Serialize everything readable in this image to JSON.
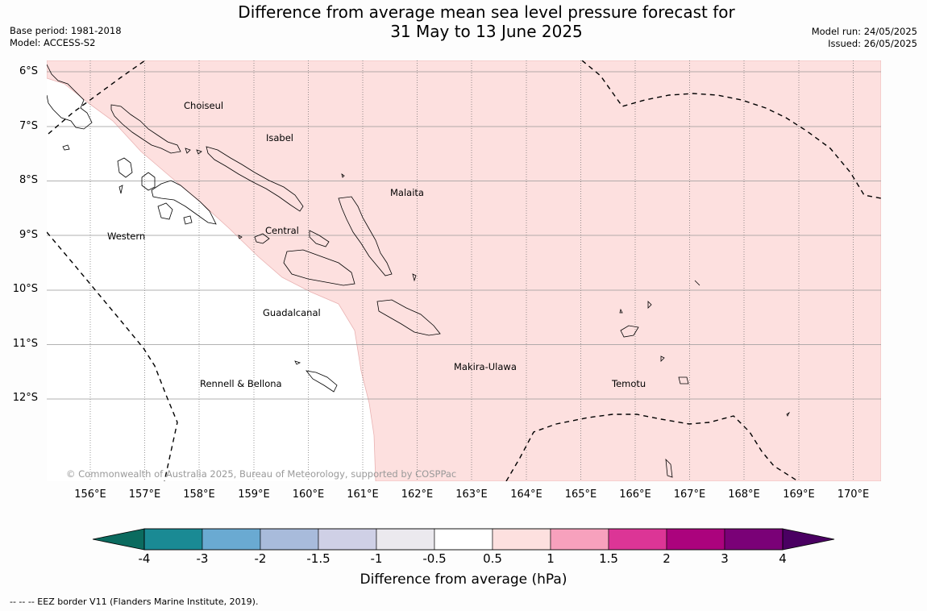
{
  "title_line1": "Difference from average mean sea level pressure forecast for",
  "title_line2": "31 May to 13 June 2025",
  "base_period": "Base period: 1981-2018",
  "model": "Model: ACCESS-S2",
  "model_run": "Model run: 24/05/2025",
  "issued": "Issued: 26/05/2025",
  "lat_labels": [
    "6°S",
    "7°S",
    "8°S",
    "9°S",
    "10°S",
    "11°S",
    "12°S"
  ],
  "lon_labels": [
    "156°E",
    "157°E",
    "158°E",
    "159°E",
    "160°E",
    "161°E",
    "162°E",
    "163°E",
    "164°E",
    "165°E",
    "166°E",
    "167°E",
    "168°E",
    "169°E",
    "170°E"
  ],
  "regions": {
    "choiseul": "Choiseul",
    "isabel": "Isabel",
    "malaita": "Malaita",
    "western": "Western",
    "central": "Central",
    "guadalcanal": "Guadalcanal",
    "makira": "Makira-Ulawa",
    "temotu": "Temotu",
    "rennell": "Rennell & Bellona"
  },
  "copyright": "© Commonwealth of Australia 2025, Bureau of Meteorology, supported by COSPPac",
  "colorbar": {
    "title": "Difference from average (hPa)",
    "ticks": [
      "-4",
      "-3",
      "-2",
      "-1.5",
      "-1",
      "-0.5",
      "0.5",
      "1",
      "1.5",
      "2",
      "3",
      "4"
    ],
    "colors": [
      "#1a8a94",
      "#6aaad2",
      "#a8bbdb",
      "#cfd0e6",
      "#ebe9ee",
      "#ffffff",
      "#fde0df",
      "#f7a1bd",
      "#dc3596",
      "#ab037d",
      "#7a0177"
    ],
    "under_color": "#0b6b5f",
    "over_color": "#4a0062"
  },
  "shading": {
    "above_0_5_color": "#fde0df"
  },
  "footnote": "--  --  -- EEZ border V11 (Flanders Marine Institute, 2019)."
}
